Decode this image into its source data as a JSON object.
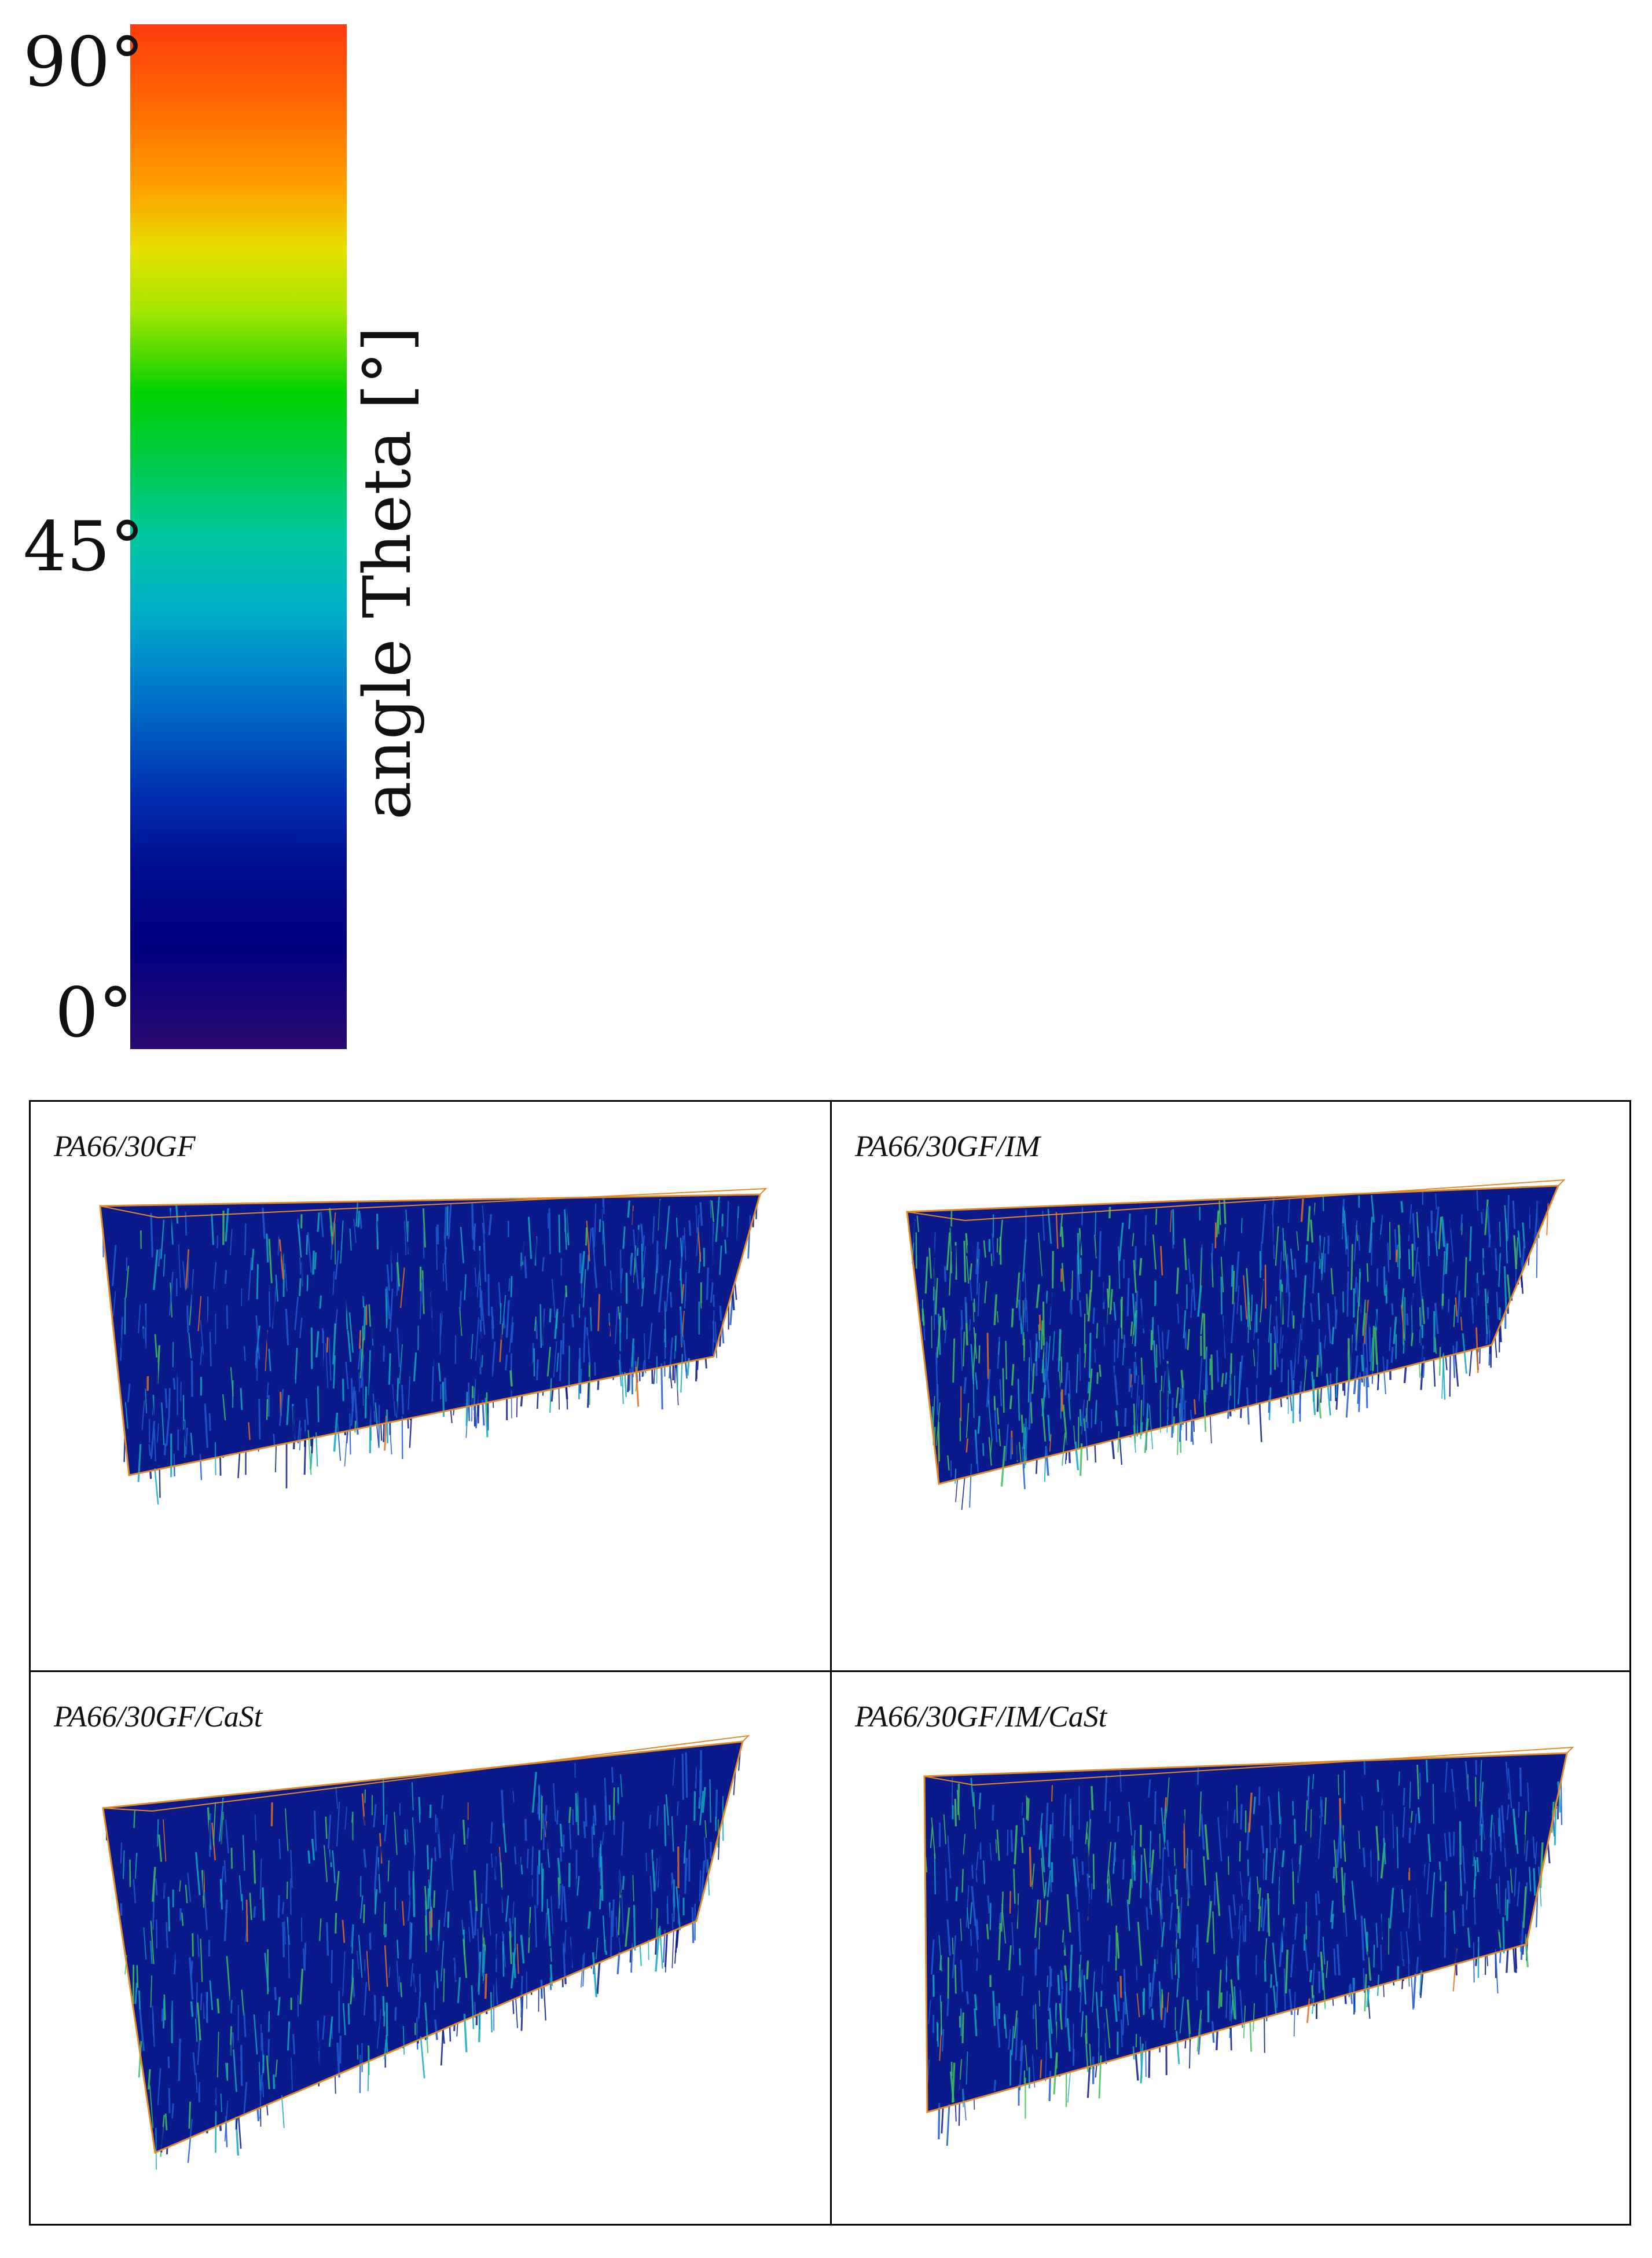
{
  "colorbar": {
    "title": "angle Theta [°]",
    "ticks": [
      {
        "label": "90°",
        "value": 90
      },
      {
        "label": "45°",
        "value": 45
      },
      {
        "label": "0°",
        "value": 0
      }
    ],
    "range": [
      0,
      90
    ]
  },
  "panels": [
    {
      "label": "PA66/30GF"
    },
    {
      "label": "PA66/30GF/IM"
    },
    {
      "label": "PA66/30GF/CaSt"
    },
    {
      "label": "PA66/30GF/IM/CaSt"
    }
  ],
  "colors": {
    "box_edge": "#e08a2a",
    "fiber_dark": "#0a1a8a",
    "fiber_mid": "#1e5ad0",
    "fiber_cyan": "#10a8c0",
    "fiber_green": "#40c060",
    "fiber_orange": "#e07020"
  }
}
